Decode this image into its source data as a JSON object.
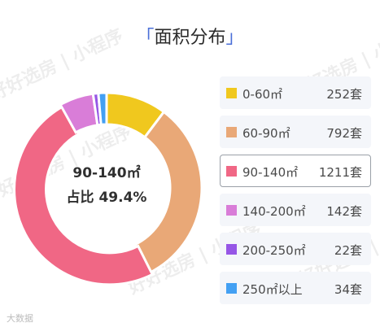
{
  "title": "面积分布",
  "title_left_quote": "「",
  "title_right_quote": "」",
  "watermark": "好好选房 | 小程序",
  "credit": "大数据",
  "center": {
    "line1": "90-140㎡",
    "line2": "占比 49.4%"
  },
  "selected_index": 2,
  "chart_data": {
    "type": "pie",
    "donut": true,
    "title": "面积分布",
    "categories": [
      "0-60㎡",
      "60-90㎡",
      "90-140㎡",
      "140-200㎡",
      "200-250㎡",
      "250㎡以上"
    ],
    "values": [
      252,
      792,
      1211,
      142,
      22,
      34
    ],
    "value_labels": [
      "252套",
      "792套",
      "1211套",
      "142套",
      "22套",
      "34套"
    ],
    "colors": [
      "#F0C81E",
      "#E9A877",
      "#F06785",
      "#D97DD8",
      "#9656E6",
      "#43A0F3"
    ],
    "legend": "right",
    "highlight": "90-140㎡"
  }
}
